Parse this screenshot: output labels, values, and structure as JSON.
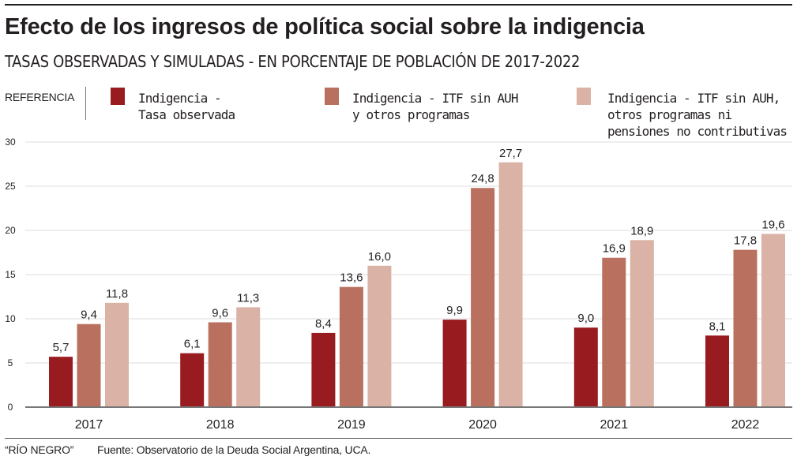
{
  "header": {
    "title": "Efecto de los ingresos de política social sobre la indigencia",
    "subtitle": "TASAS OBSERVADAS Y SIMULADAS - EN PORCENTAJE DE POBLACIÓN DE 2017-2022"
  },
  "legend": {
    "heading": "REFERENCIA",
    "items": [
      {
        "label": "Indigencia -\nTasa observada",
        "color": "#971b1f"
      },
      {
        "label": "Indigencia - ITF sin AUH\ny otros programas",
        "color": "#b9705e"
      },
      {
        "label": "Indigencia - ITF sin AUH,\notros programas ni\npensiones no contributivas",
        "color": "#dab2a6"
      }
    ]
  },
  "footer": {
    "brand": "“RÍO NEGRO”",
    "source": "Fuente: Observatorio de la Deuda Social Argentina, UCA."
  },
  "chart_data": {
    "type": "bar",
    "title": "Efecto de los ingresos de política social sobre la indigencia",
    "subtitle": "TASAS OBSERVADAS Y SIMULADAS - EN PORCENTAJE DE POBLACIÓN DE 2017-2022",
    "xlabel": "",
    "ylabel": "",
    "ylim": [
      0,
      30
    ],
    "yticks": [
      0,
      5,
      10,
      15,
      20,
      25,
      30
    ],
    "grid": true,
    "legend_position": "top",
    "categories": [
      "2017",
      "2018",
      "2019",
      "2020",
      "2021",
      "2022"
    ],
    "series": [
      {
        "name": "Indigencia - Tasa observada",
        "color": "#971b1f",
        "values": [
          5.7,
          6.1,
          8.4,
          9.9,
          9.0,
          8.1
        ],
        "labels": [
          "5,7",
          "6,1",
          "8,4",
          "9,9",
          "9,0",
          "8,1"
        ]
      },
      {
        "name": "Indigencia - ITF sin AUH y otros programas",
        "color": "#b9705e",
        "values": [
          9.4,
          9.6,
          13.6,
          24.8,
          16.9,
          17.8
        ],
        "labels": [
          "9,4",
          "9,6",
          "13,6",
          "24,8",
          "16,9",
          "17,8"
        ]
      },
      {
        "name": "Indigencia - ITF sin AUH, otros programas ni pensiones no contributivas",
        "color": "#dab2a6",
        "values": [
          11.8,
          11.3,
          16.0,
          27.7,
          18.9,
          19.6
        ],
        "labels": [
          "11,8",
          "11,3",
          "16,0",
          "27,7",
          "18,9",
          "19,6"
        ]
      }
    ]
  }
}
